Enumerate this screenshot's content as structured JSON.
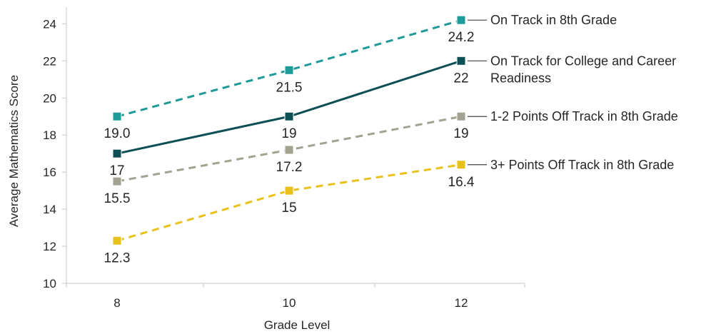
{
  "chart_data": {
    "type": "line",
    "title": "",
    "xlabel": "Grade Level",
    "ylabel": "Average Mathematics Score",
    "x": [
      8,
      10,
      12
    ],
    "xticks": [
      "8",
      "10",
      "12"
    ],
    "ylim": [
      10,
      24
    ],
    "yticks": [
      "10",
      "12",
      "14",
      "16",
      "18",
      "20",
      "22",
      "24"
    ],
    "grid": false,
    "legend_position": "right, end of each line",
    "series": [
      {
        "name": "On Track in 8th Grade",
        "name_lines": [
          "On Track in 8th Grade"
        ],
        "values": [
          19.0,
          21.5,
          24.2
        ],
        "labels": [
          "19.0",
          "21.5",
          "24.2"
        ],
        "color": "#1e9a98",
        "dashed": true
      },
      {
        "name": "On Track for College and Career Readiness",
        "name_lines": [
          "On Track for College and Career",
          "Readiness"
        ],
        "values": [
          17,
          19,
          22
        ],
        "labels": [
          "17",
          "19",
          "22"
        ],
        "color": "#0d4f55",
        "dashed": false
      },
      {
        "name": "1-2 Points Off Track in 8th Grade",
        "name_lines": [
          "1-2 Points Off Track in 8th Grade"
        ],
        "values": [
          15.5,
          17.2,
          19
        ],
        "labels": [
          "15.5",
          "17.2",
          "19"
        ],
        "color": "#a3a291",
        "dashed": true
      },
      {
        "name": "3+ Points Off Track in 8th Grade",
        "name_lines": [
          "3+ Points Off Track in 8th Grade"
        ],
        "values": [
          12.3,
          15,
          16.4
        ],
        "labels": [
          "12.3",
          "15",
          "16.4"
        ],
        "color": "#e8c21a",
        "dashed": true
      }
    ]
  }
}
